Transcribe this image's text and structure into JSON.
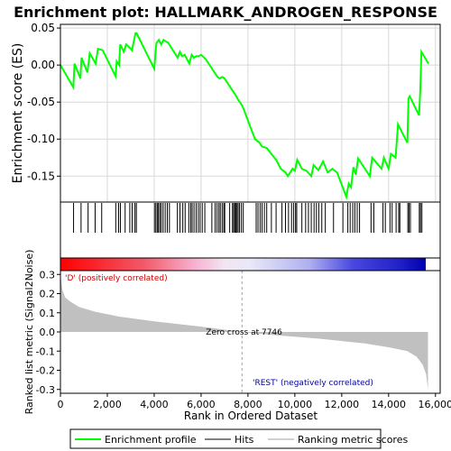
{
  "chart_data": {
    "type": "line",
    "title": "Enrichment plot: HALLMARK_ANDROGEN_RESPONSE",
    "top_panel": {
      "ylabel": "Enrichment score (ES)",
      "ylim": [
        -0.185,
        0.055
      ],
      "yticks": [
        0.05,
        0.0,
        -0.05,
        -0.1,
        -0.15
      ],
      "ytick_labels": [
        "0.05",
        "0.00",
        "-0.05",
        "-0.10",
        "-0.15"
      ],
      "xlim": [
        0,
        16200
      ],
      "grid": true,
      "series": [
        {
          "name": "Enrichment profile",
          "color": "#00ff00",
          "x": [
            0,
            550,
            600,
            850,
            900,
            1150,
            1250,
            1500,
            1600,
            1800,
            2350,
            2400,
            2500,
            2550,
            2700,
            2800,
            3000,
            3050,
            3200,
            3250,
            4000,
            4080,
            4100,
            4200,
            4300,
            4400,
            4500,
            4600,
            5000,
            5100,
            5200,
            5300,
            5500,
            5600,
            5700,
            5800,
            5900,
            6000,
            6200,
            6700,
            6800,
            6900,
            7000,
            7500,
            7600,
            7700,
            7800,
            8000,
            8300,
            8500,
            8600,
            8800,
            9000,
            9200,
            9400,
            9600,
            9700,
            9900,
            10000,
            10100,
            10300,
            10500,
            10700,
            10800,
            11000,
            11200,
            11400,
            11600,
            11800,
            12200,
            12300,
            12400,
            12500,
            12600,
            12700,
            13200,
            13300,
            13700,
            13800,
            14000,
            14100,
            14300,
            14400,
            14800,
            14850,
            14900,
            15300,
            15350,
            15400,
            15700
          ],
          "y": [
            0.0,
            -0.03,
            0.002,
            -0.018,
            0.01,
            -0.01,
            0.016,
            0.002,
            0.022,
            0.02,
            -0.015,
            0.005,
            0.0,
            0.028,
            0.018,
            0.028,
            0.022,
            0.02,
            0.043,
            0.043,
            -0.005,
            0.025,
            0.03,
            0.034,
            0.028,
            0.034,
            0.032,
            0.03,
            0.01,
            0.018,
            0.012,
            0.014,
            0.002,
            0.014,
            0.01,
            0.012,
            0.012,
            0.014,
            0.008,
            -0.016,
            -0.018,
            -0.016,
            -0.018,
            -0.042,
            -0.048,
            -0.052,
            -0.058,
            -0.075,
            -0.1,
            -0.105,
            -0.11,
            -0.112,
            -0.12,
            -0.128,
            -0.14,
            -0.145,
            -0.15,
            -0.14,
            -0.143,
            -0.128,
            -0.14,
            -0.143,
            -0.15,
            -0.135,
            -0.142,
            -0.13,
            -0.145,
            -0.14,
            -0.145,
            -0.178,
            -0.16,
            -0.165,
            -0.138,
            -0.148,
            -0.126,
            -0.15,
            -0.125,
            -0.14,
            -0.125,
            -0.14,
            -0.12,
            -0.125,
            -0.08,
            -0.105,
            -0.045,
            -0.042,
            -0.068,
            -0.035,
            0.018,
            0.002
          ]
        }
      ]
    },
    "hits": {
      "name": "Hits",
      "x": [
        560,
        880,
        1180,
        1480,
        1760,
        2360,
        2480,
        2560,
        2760,
        2960,
        3060,
        3180,
        3240,
        4010,
        4070,
        4130,
        4180,
        4240,
        4300,
        4380,
        4470,
        4560,
        4650,
        4990,
        5100,
        5220,
        5320,
        5480,
        5560,
        5620,
        5700,
        5790,
        5880,
        5960,
        6050,
        6160,
        6460,
        6600,
        6680,
        6760,
        6820,
        6900,
        6970,
        7010,
        7220,
        7340,
        7390,
        7440,
        7480,
        7530,
        7580,
        7640,
        7720,
        7800,
        8350,
        8430,
        8520,
        8600,
        8700,
        8800,
        9000,
        9200,
        9450,
        9600,
        9730,
        9860,
        9950,
        10030,
        10080,
        10300,
        10460,
        10580,
        10700,
        10820,
        10920,
        11020,
        11150,
        11300,
        11650,
        12050,
        12260,
        12360,
        12470,
        12560,
        12660,
        12760,
        13250,
        13370,
        13760,
        13860,
        14060,
        14150,
        14320,
        14430,
        14480,
        14820,
        14870,
        14930,
        15310,
        15360,
        15420
      ]
    },
    "bottom_panel": {
      "ylabel": "Ranked list metric (Signal2Noise)",
      "xlabel": "Rank in Ordered Dataset",
      "ylim": [
        -0.32,
        0.32
      ],
      "yticks": [
        0.3,
        0.2,
        0.1,
        0.0,
        -0.1,
        -0.2,
        -0.3
      ],
      "ytick_labels": [
        "0.3",
        "0.2",
        "0.1",
        "0.0",
        "-0.1",
        "-0.2",
        "-0.3"
      ],
      "xticks": [
        0,
        2000,
        4000,
        6000,
        8000,
        10000,
        12000,
        14000,
        16000
      ],
      "xtick_labels": [
        "0",
        "2,000",
        "4,000",
        "6,000",
        "8,000",
        "10,000",
        "12,000",
        "14,000",
        "16,000"
      ],
      "metric_x": [
        0,
        80,
        200,
        400,
        800,
        1500,
        2500,
        4000,
        6000,
        7746,
        9000,
        11000,
        13000,
        14000,
        14800,
        15200,
        15450,
        15600,
        15680
      ],
      "metric_y": [
        0.3,
        0.22,
        0.18,
        0.16,
        0.13,
        0.105,
        0.08,
        0.055,
        0.028,
        0.0,
        -0.015,
        -0.035,
        -0.06,
        -0.08,
        -0.1,
        -0.13,
        -0.17,
        -0.22,
        -0.3
      ],
      "zero_cross_x": 7746,
      "zero_cross_label": "Zero cross at 7746",
      "pos_label": "'D' (positively correlated)",
      "neg_label": "'REST' (negatively correlated)"
    },
    "legend": {
      "placement": "bottom",
      "entries": [
        "Enrichment profile",
        "Hits",
        "Ranking metric scores"
      ]
    },
    "colors": {
      "profile": "#00ff00",
      "hits": "#000000",
      "metric_fill": "#c0c0c0",
      "positive": "#ff0000",
      "negative": "#0000ff",
      "zero_line": "#a0a0a0"
    }
  }
}
